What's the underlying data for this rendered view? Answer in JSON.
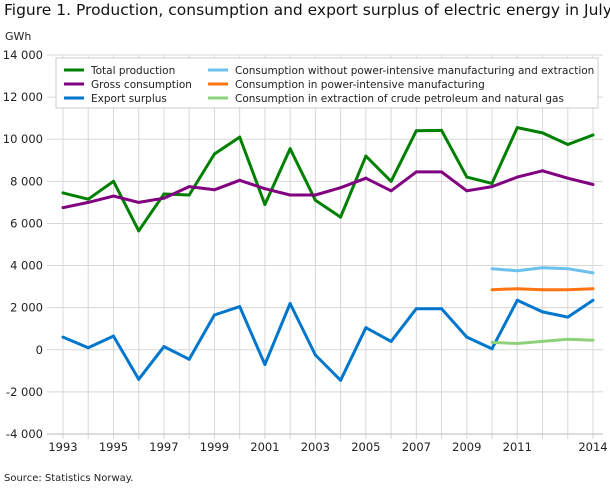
{
  "chart_data": {
    "type": "line",
    "title": "Figure 1. Production, consumption and export surplus of electric energy in July",
    "ylabel": "GWh",
    "source": "Source: Statistics Norway.",
    "ylim": [
      -4000,
      14000
    ],
    "yticks": [
      -4000,
      -2000,
      0,
      2000,
      4000,
      6000,
      8000,
      10000,
      12000,
      14000
    ],
    "ytick_labels": [
      "-4 000",
      "-2 000",
      "0",
      "2 000",
      "4 000",
      "6 000",
      "8 000",
      "10 000",
      "12 000",
      "14 000"
    ],
    "xticks": [
      1993,
      1995,
      1997,
      1999,
      2001,
      2003,
      2005,
      2007,
      2009,
      2011,
      2014
    ],
    "grid": true,
    "legend_position": "top",
    "x": [
      1993,
      1994,
      1995,
      1996,
      1997,
      1998,
      1999,
      2000,
      2001,
      2002,
      2003,
      2004,
      2005,
      2006,
      2007,
      2008,
      2009,
      2010,
      2011,
      2012,
      2013,
      2014
    ],
    "series": [
      {
        "name": "Total production",
        "color": "#008000",
        "values": [
          7450,
          7150,
          8000,
          5650,
          7400,
          7350,
          9300,
          10100,
          6900,
          9550,
          7100,
          6300,
          9200,
          8000,
          10400,
          10420,
          8200,
          7900,
          10550,
          10300,
          9750,
          10200
        ]
      },
      {
        "name": "Gross consumption",
        "color": "#800080",
        "values": [
          6750,
          7000,
          7300,
          7000,
          7200,
          7750,
          7600,
          8050,
          7650,
          7350,
          7350,
          7700,
          8150,
          7550,
          8450,
          8450,
          7550,
          7750,
          8200,
          8500,
          8150,
          7850
        ]
      },
      {
        "name": "Export surplus",
        "color": "#0077cc",
        "values": [
          600,
          100,
          650,
          -1400,
          150,
          -450,
          1650,
          2050,
          -700,
          2200,
          -250,
          -1450,
          1050,
          400,
          1950,
          1950,
          600,
          50,
          2350,
          1800,
          1550,
          2350
        ]
      },
      {
        "name": "Consumption without power-intensive manufacturing and extraction",
        "color": "#6cc0ee",
        "values": [
          null,
          null,
          null,
          null,
          null,
          null,
          null,
          null,
          null,
          null,
          null,
          null,
          null,
          null,
          null,
          null,
          null,
          3850,
          3750,
          3900,
          3850,
          3650
        ]
      },
      {
        "name": "Consumption in power-intensive manufacturing",
        "color": "#ff7410",
        "values": [
          null,
          null,
          null,
          null,
          null,
          null,
          null,
          null,
          null,
          null,
          null,
          null,
          null,
          null,
          null,
          null,
          null,
          2850,
          2900,
          2850,
          2850,
          2900
        ]
      },
      {
        "name": "Consumption in extraction of crude petroleum and natural gas",
        "color": "#8fd07a",
        "values": [
          null,
          null,
          null,
          null,
          null,
          null,
          null,
          null,
          null,
          null,
          null,
          null,
          null,
          null,
          null,
          null,
          null,
          350,
          300,
          400,
          500,
          450
        ]
      }
    ]
  }
}
